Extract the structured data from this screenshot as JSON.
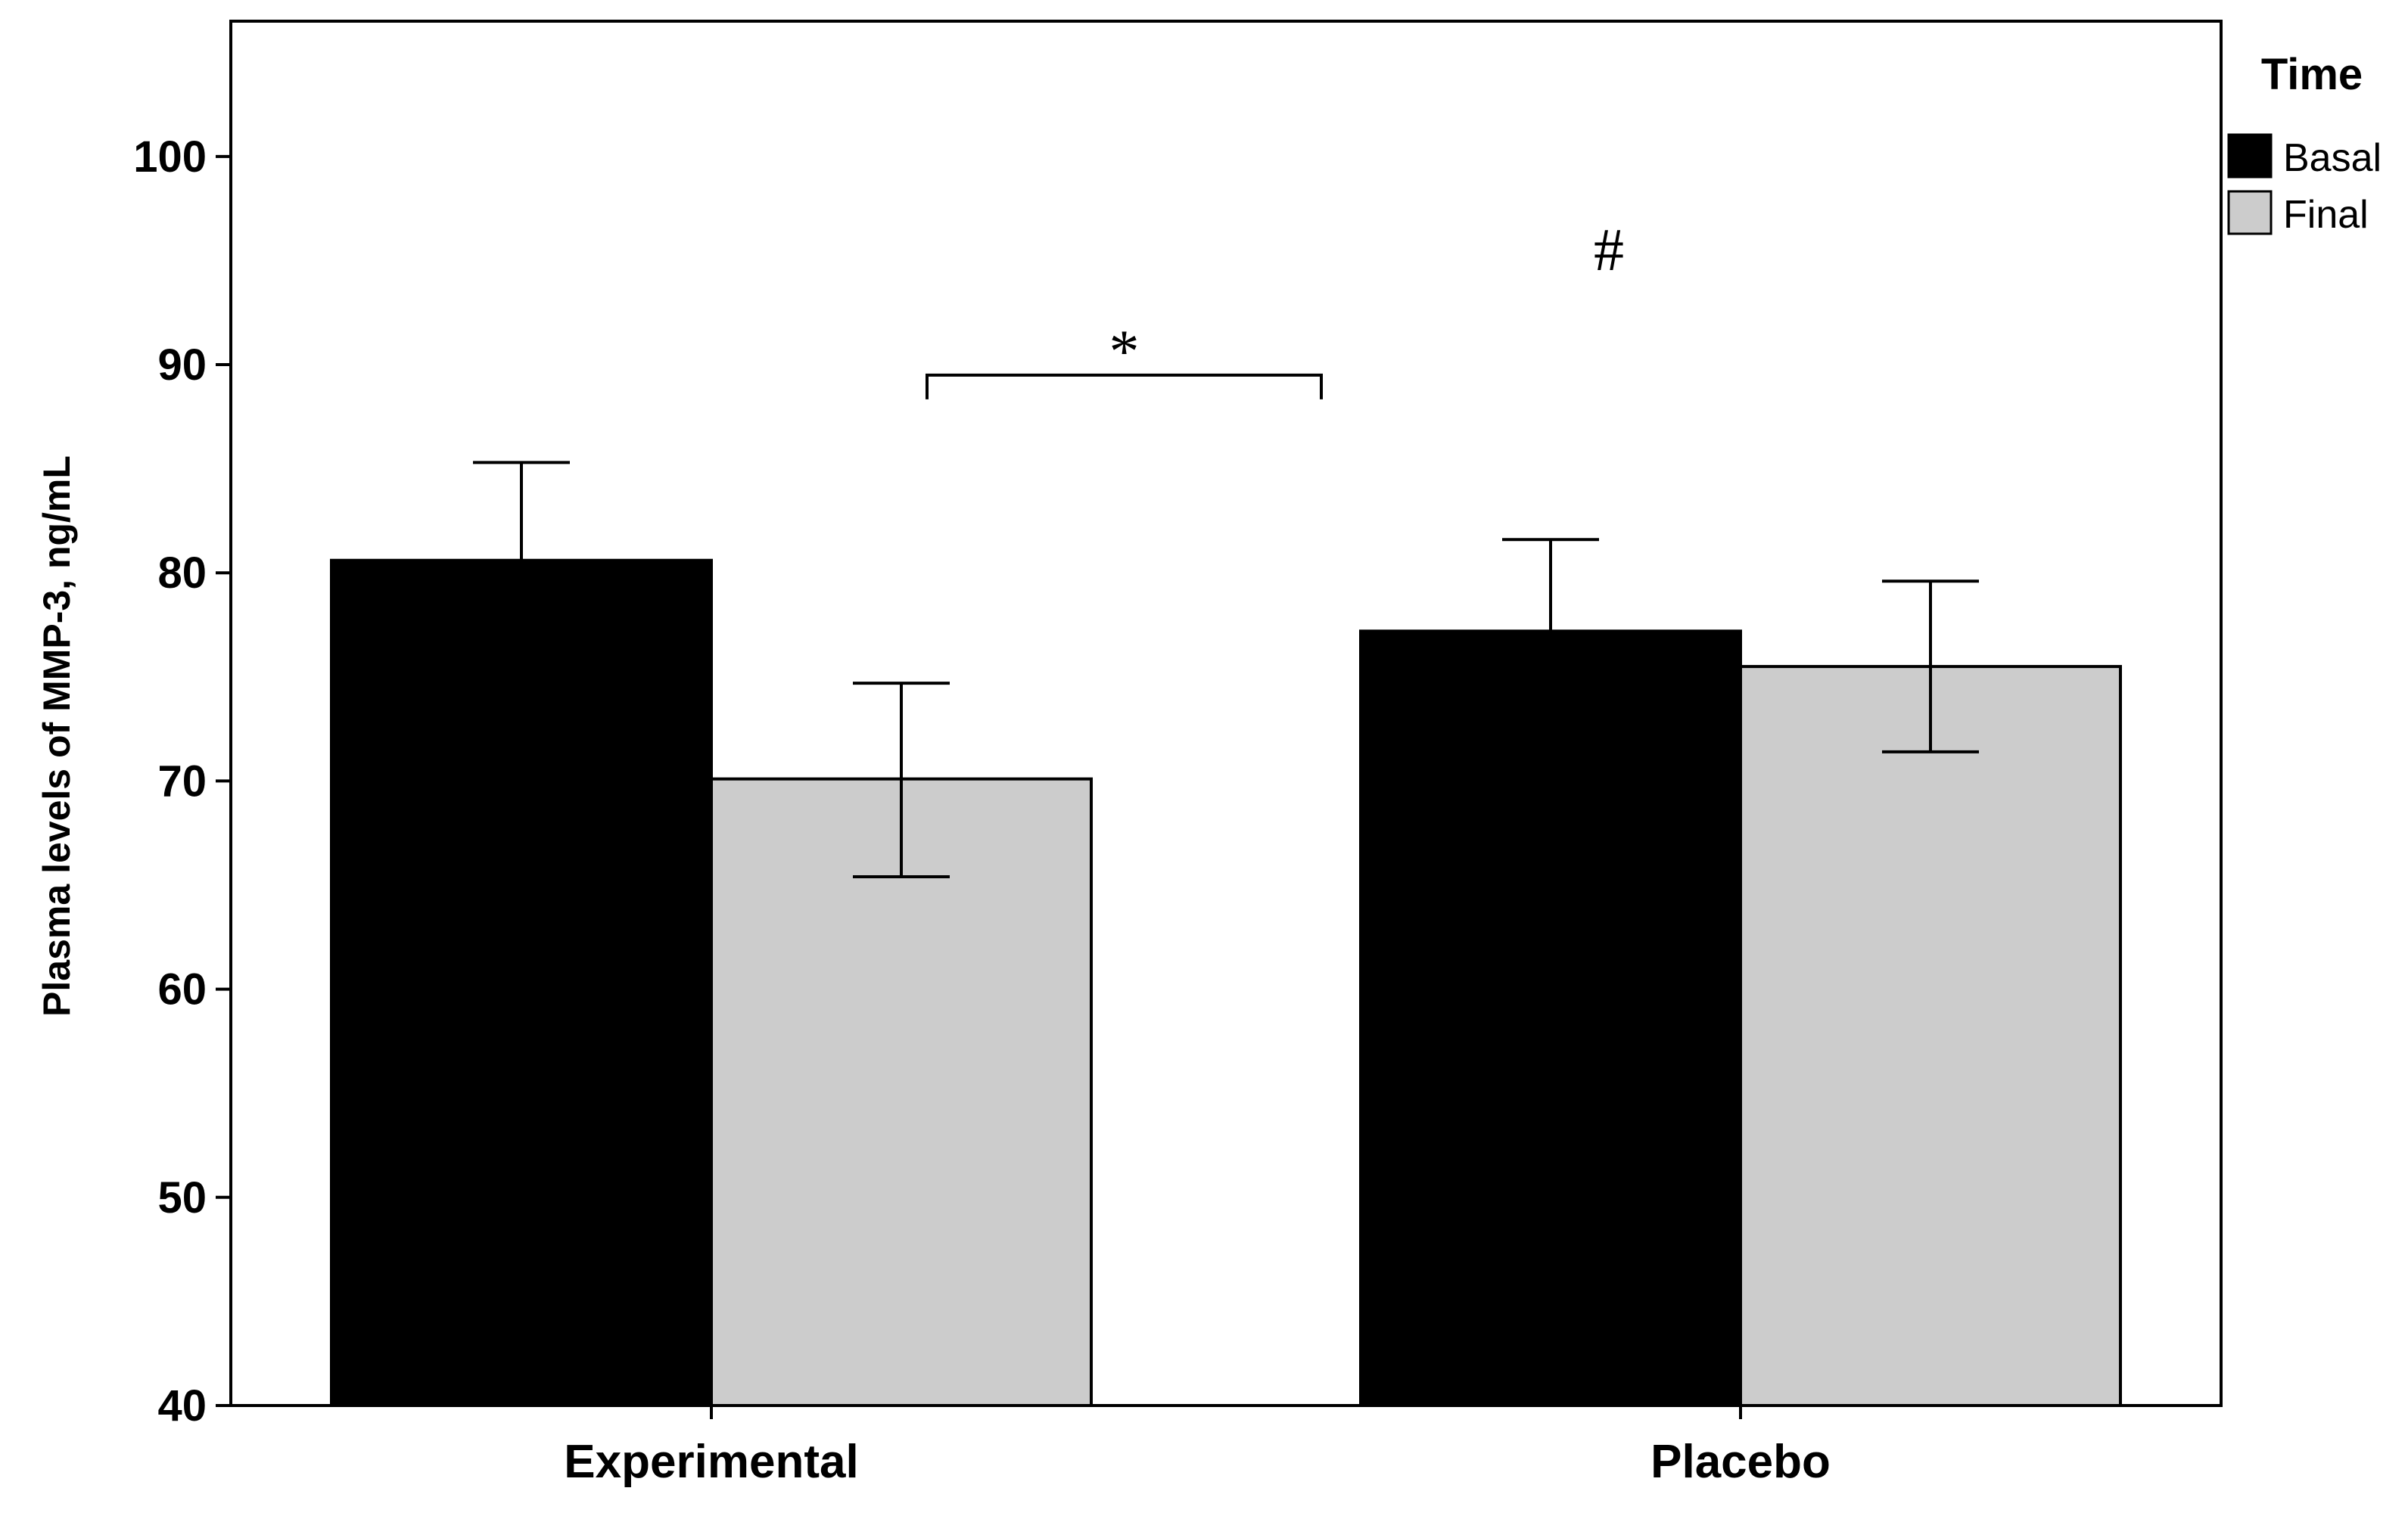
{
  "chart_data": {
    "type": "bar",
    "title": "",
    "xlabel": "",
    "ylabel": "Plasma levels of MMP-3, ng/mL",
    "ylim": [
      40,
      106.5
    ],
    "yticks": [
      40,
      50,
      60,
      70,
      80,
      90,
      100
    ],
    "categories": [
      "Experimental",
      "Placebo"
    ],
    "legend": {
      "title": "Time",
      "position": "top-right"
    },
    "series": [
      {
        "name": "Basal",
        "color": "#000000",
        "values": [
          80.6,
          77.2
        ],
        "error_upper": [
          85.3,
          81.6
        ],
        "error_lower": [
          80.6,
          77.2
        ]
      },
      {
        "name": "Final",
        "color": "#cccccc",
        "values": [
          70.1,
          75.5
        ],
        "error_upper": [
          74.7,
          79.6
        ],
        "error_lower": [
          65.4,
          71.4
        ]
      }
    ],
    "annotations": [
      {
        "text": "*",
        "meaning": "significant difference Basal vs Final, Experimental",
        "y": 91.5
      },
      {
        "text": "#",
        "meaning": "marker above Placebo group",
        "y": 96
      }
    ]
  }
}
